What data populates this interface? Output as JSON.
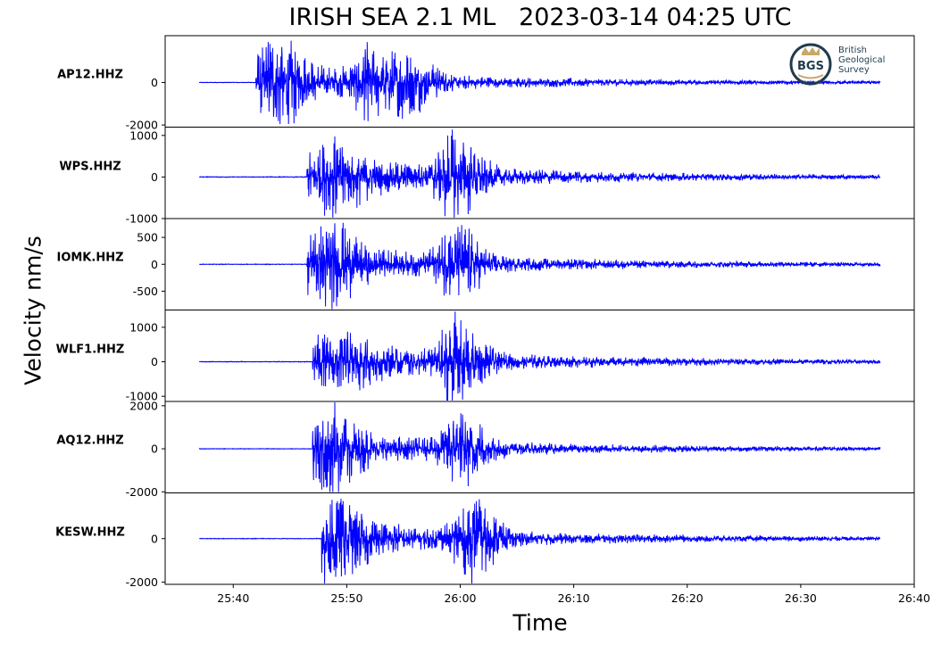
{
  "title": "IRISH SEA 2.1 ML   2023-03-14 04:25 UTC",
  "ylabel": "Velocity nm/s",
  "xlabel": "Time",
  "logo": {
    "abbr": "BGS",
    "lines": [
      "British",
      "Geological",
      "Survey"
    ],
    "color": "#1f3b4d",
    "accent": "#c9a86a"
  },
  "trace_color": "#0000ff",
  "chart_data": {
    "type": "line",
    "title": "IRISH SEA 2.1 ML   2023-03-14 04:25 UTC",
    "xlabel": "Time",
    "ylabel": "Velocity nm/s",
    "x_ticks": [
      "25:40",
      "25:50",
      "26:00",
      "26:10",
      "26:20",
      "26:30",
      "26:40"
    ],
    "x_range_seconds": [
      34,
      100
    ],
    "trace_start_seconds": 37,
    "trace_end_seconds": 97,
    "grid": false,
    "panels": [
      {
        "station": "AP12.HHZ",
        "ylim": [
          -2100,
          2200
        ],
        "yticks": [
          {
            "v": 0,
            "label": "0"
          },
          {
            "v": -2000,
            "label": "-2000"
          }
        ],
        "onset_seconds": 42.0,
        "peaks": [
          {
            "t": 44.0,
            "amp": 1700
          },
          {
            "t": 52.0,
            "amp": 1600
          },
          {
            "t": 55.5,
            "amp": 1400
          }
        ],
        "max_amp": 2000,
        "decay": 12
      },
      {
        "station": "WPS.HHZ",
        "ylim": [
          -1000,
          1200
        ],
        "yticks": [
          {
            "v": 1000,
            "label": "1000"
          },
          {
            "v": 0,
            "label": "0"
          },
          {
            "v": -1000,
            "label": "-1000"
          }
        ],
        "onset_seconds": 46.5,
        "peaks": [
          {
            "t": 49.0,
            "amp": 550
          },
          {
            "t": 59.5,
            "amp": 1150
          }
        ],
        "max_amp": 1150,
        "decay": 13
      },
      {
        "station": "IOMK.HHZ",
        "ylim": [
          -850,
          850
        ],
        "yticks": [
          {
            "v": 500,
            "label": "500"
          },
          {
            "v": 0,
            "label": "0"
          },
          {
            "v": -500,
            "label": "-500"
          }
        ],
        "onset_seconds": 46.5,
        "peaks": [
          {
            "t": 48.5,
            "amp": 550
          },
          {
            "t": 59.5,
            "amp": 800
          }
        ],
        "max_amp": 850,
        "decay": 12
      },
      {
        "station": "WLF1.HHZ",
        "ylim": [
          -1150,
          1500
        ],
        "yticks": [
          {
            "v": 1000,
            "label": "1000"
          },
          {
            "v": 0,
            "label": "0"
          },
          {
            "v": -1000,
            "label": "-1000"
          }
        ],
        "onset_seconds": 47.0,
        "peaks": [
          {
            "t": 50.0,
            "amp": 450
          },
          {
            "t": 59.5,
            "amp": 1350
          }
        ],
        "max_amp": 1400,
        "decay": 12
      },
      {
        "station": "AQ12.HHZ",
        "ylim": [
          -2050,
          2200
        ],
        "yticks": [
          {
            "v": 2000,
            "label": "2000"
          },
          {
            "v": 0,
            "label": "0"
          },
          {
            "v": -2000,
            "label": "-2000"
          }
        ],
        "onset_seconds": 47.0,
        "peaks": [
          {
            "t": 48.5,
            "amp": 1700
          },
          {
            "t": 60.0,
            "amp": 1950
          }
        ],
        "max_amp": 2000,
        "decay": 11
      },
      {
        "station": "KESW.HHZ",
        "ylim": [
          -2100,
          2100
        ],
        "yticks": [
          {
            "v": 0,
            "label": "0"
          },
          {
            "v": -2000,
            "label": "-2000"
          }
        ],
        "onset_seconds": 47.8,
        "peaks": [
          {
            "t": 49.0,
            "amp": 1800
          },
          {
            "t": 61.0,
            "amp": 2000
          }
        ],
        "max_amp": 2050,
        "decay": 12
      }
    ]
  }
}
